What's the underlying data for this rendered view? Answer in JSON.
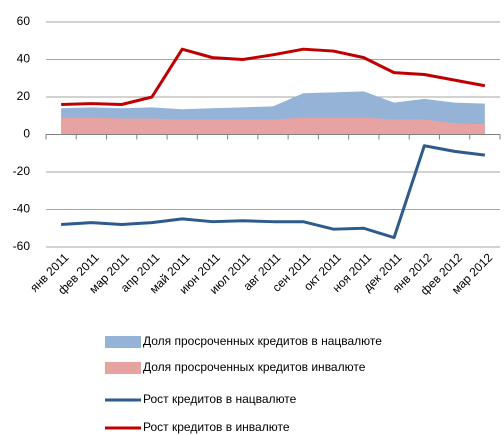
{
  "chart_data": {
    "type": "line",
    "categories": [
      "янв 2011",
      "фев 2011",
      "мар 2011",
      "апр 2011",
      "май 2011",
      "июн 2011",
      "июл 2011",
      "авг 2011",
      "сен 2011",
      "окт 2011",
      "ноя 2011",
      "дек 2011",
      "янв 2012",
      "фев 2012",
      "мар 2012"
    ],
    "series": [
      {
        "name": "Доля просроченных кредитов в нацвалюте",
        "type": "area",
        "color": "#95b3d7",
        "values": [
          14,
          14.5,
          14,
          14.5,
          13.5,
          14,
          14.5,
          15,
          22,
          22.5,
          23,
          17,
          19,
          17,
          16.5
        ]
      },
      {
        "name": "Доля просроченных кредитов инвалюте",
        "type": "area",
        "color": "#e6a3a1",
        "values": [
          9,
          9,
          8.5,
          8.5,
          8,
          8,
          8,
          8,
          9,
          9,
          9,
          8,
          8,
          6,
          5.5
        ]
      },
      {
        "name": "Рост кредитов в нацвалюте",
        "type": "line",
        "color": "#2f5b8c",
        "values": [
          -48,
          -47,
          -48,
          -47,
          -45,
          -46.5,
          -46,
          -46.5,
          -46.5,
          -50.5,
          -50,
          -55,
          -6,
          -9,
          -11
        ]
      },
      {
        "name": "Рост кредитов в инвалюте",
        "type": "line",
        "color": "#c00000",
        "values": [
          16,
          16.5,
          16,
          20,
          45.5,
          41,
          40,
          42.5,
          45.5,
          44.5,
          41,
          33,
          32,
          29,
          26
        ]
      }
    ],
    "ylim": [
      -60,
      60
    ],
    "yticks": [
      -60,
      -40,
      -20,
      0,
      20,
      40,
      60
    ],
    "grid": true
  }
}
